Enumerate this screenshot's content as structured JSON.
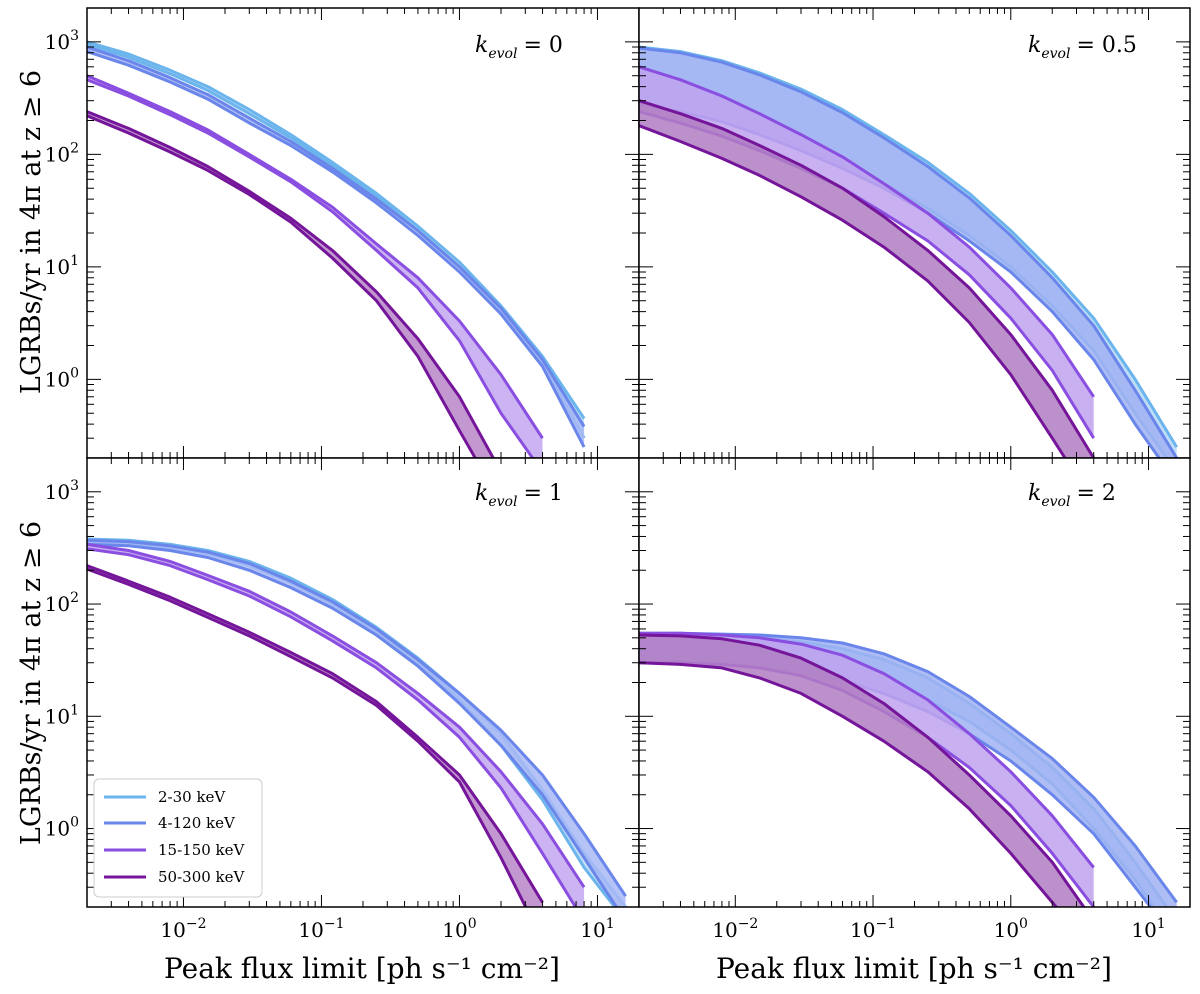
{
  "figure": {
    "ylabel": "LGRBs/yr in 4π at z ≥ 6",
    "xlabel": "Peak flux limit [ph s⁻¹ cm⁻²]"
  },
  "ticks": {
    "x": [
      {
        "base": "10",
        "exp": "−2",
        "value": 0.01
      },
      {
        "base": "10",
        "exp": "−1",
        "value": 0.1
      },
      {
        "base": "10",
        "exp": "0",
        "value": 1
      },
      {
        "base": "10",
        "exp": "1",
        "value": 10
      }
    ],
    "y": [
      {
        "base": "10",
        "exp": "3",
        "value": 1000
      },
      {
        "base": "10",
        "exp": "2",
        "value": 100
      },
      {
        "base": "10",
        "exp": "1",
        "value": 10
      },
      {
        "base": "10",
        "exp": "0",
        "value": 1
      }
    ]
  },
  "legend": {
    "position": "lower-left",
    "items": [
      {
        "label": "2-30 keV",
        "color": "#6cb4ec"
      },
      {
        "label": "4-120 keV",
        "color": "#6a86ea"
      },
      {
        "label": "15-150 keV",
        "color": "#8a4ee0"
      },
      {
        "label": "50-300 keV",
        "color": "#74159a"
      }
    ]
  },
  "chart_data": [
    {
      "type": "area",
      "title": "k_evol = 0",
      "label_main": "k",
      "label_sub": "evol",
      "label_value": "= 0",
      "xscale": "log",
      "yscale": "log",
      "xlim": [
        0.002,
        20
      ],
      "ylim": [
        0.2,
        2000
      ],
      "x": [
        0.002,
        0.004,
        0.008,
        0.015,
        0.03,
        0.06,
        0.12,
        0.25,
        0.5,
        1,
        2,
        4,
        8,
        16
      ],
      "series": [
        {
          "name": "2-30 keV",
          "color": "#6cb4ec",
          "fill": "#b4d8f6",
          "upper": [
            1000,
            780,
            560,
            400,
            250,
            150,
            85,
            45,
            23,
            11,
            4.5,
            1.6,
            0.45,
            null
          ],
          "lower": [
            950,
            730,
            520,
            370,
            230,
            140,
            80,
            42,
            21,
            10,
            4.0,
            1.4,
            0.3,
            null
          ]
        },
        {
          "name": "4-120 keV",
          "color": "#6a86ea",
          "fill": "#a9b9f4",
          "upper": [
            900,
            680,
            480,
            340,
            210,
            130,
            75,
            40,
            21,
            10,
            4.3,
            1.5,
            0.38,
            null
          ],
          "lower": [
            820,
            620,
            440,
            310,
            190,
            120,
            70,
            37,
            19,
            9,
            3.8,
            1.3,
            0.25,
            null
          ]
        },
        {
          "name": "15-150 keV",
          "color": "#8a4ee0",
          "fill": "#c3a6f0",
          "upper": [
            500,
            350,
            240,
            165,
            100,
            60,
            34,
            16,
            8,
            3.3,
            1.1,
            0.3,
            null,
            null
          ],
          "lower": [
            460,
            330,
            225,
            155,
            95,
            57,
            31,
            14,
            6.5,
            2.2,
            0.5,
            0.15,
            null,
            null
          ]
        },
        {
          "name": "50-300 keV",
          "color": "#74159a",
          "fill": "#b886c8",
          "upper": [
            240,
            170,
            115,
            78,
            47,
            27,
            14,
            6.0,
            2.3,
            0.7,
            0.15,
            null,
            null,
            null
          ],
          "lower": [
            220,
            155,
            105,
            72,
            44,
            25,
            12,
            5.0,
            1.6,
            0.35,
            0.08,
            null,
            null,
            null
          ]
        }
      ]
    },
    {
      "type": "area",
      "title": "k_evol = 0.5",
      "label_main": "k",
      "label_sub": "evol",
      "label_value": "= 0.5",
      "xscale": "log",
      "yscale": "log",
      "xlim": [
        0.002,
        20
      ],
      "ylim": [
        0.2,
        2000
      ],
      "x": [
        0.002,
        0.004,
        0.008,
        0.015,
        0.03,
        0.06,
        0.12,
        0.25,
        0.5,
        1,
        2,
        4,
        8,
        16
      ],
      "series": [
        {
          "name": "2-30 keV",
          "color": "#6cb4ec",
          "fill": "#b4d8f6",
          "upper": [
            900,
            820,
            680,
            530,
            380,
            250,
            150,
            85,
            45,
            21,
            9,
            3.5,
            1.0,
            0.25
          ],
          "lower": [
            340,
            280,
            220,
            170,
            120,
            82,
            55,
            33,
            19,
            10,
            4.5,
            1.8,
            0.5,
            0.15
          ]
        },
        {
          "name": "4-120 keV",
          "color": "#6a86ea",
          "fill": "#a0b2f2",
          "upper": [
            880,
            800,
            660,
            510,
            360,
            235,
            140,
            78,
            41,
            19,
            8,
            3.0,
            0.8,
            0.2
          ],
          "lower": [
            280,
            240,
            195,
            150,
            108,
            75,
            50,
            30,
            17,
            9,
            4,
            1.5,
            0.4,
            0.12
          ]
        },
        {
          "name": "15-150 keV",
          "color": "#8a4ee0",
          "fill": "#c0a2ee",
          "upper": [
            600,
            460,
            330,
            230,
            150,
            95,
            55,
            30,
            15,
            6.5,
            2.5,
            0.7,
            0.15,
            null
          ],
          "lower": [
            240,
            190,
            145,
            108,
            75,
            50,
            30,
            17,
            8.5,
            3.5,
            1.2,
            0.3,
            null,
            null
          ]
        },
        {
          "name": "50-300 keV",
          "color": "#74159a",
          "fill": "#b07ec2",
          "upper": [
            300,
            230,
            170,
            120,
            80,
            50,
            28,
            14,
            6.5,
            2.5,
            0.8,
            0.2,
            null,
            null
          ],
          "lower": [
            180,
            130,
            92,
            65,
            42,
            26,
            15,
            7.5,
            3.2,
            1.1,
            0.3,
            0.08,
            null,
            null
          ]
        }
      ]
    },
    {
      "type": "area",
      "title": "k_evol = 1",
      "label_main": "k",
      "label_sub": "evol",
      "label_value": "= 1",
      "xscale": "log",
      "yscale": "log",
      "xlim": [
        0.002,
        20
      ],
      "ylim": [
        0.2,
        2000
      ],
      "x": [
        0.002,
        0.004,
        0.008,
        0.015,
        0.03,
        0.06,
        0.12,
        0.25,
        0.5,
        1,
        2,
        4,
        8,
        16
      ],
      "series": [
        {
          "name": "2-30 keV",
          "color": "#6cb4ec",
          "fill": "#b4d8f6",
          "upper": [
            380,
            370,
            340,
            300,
            240,
            170,
            110,
            62,
            33,
            16,
            7,
            2.2,
            0.6,
            0.2
          ],
          "lower": [
            360,
            350,
            320,
            280,
            220,
            155,
            100,
            56,
            30,
            14,
            5.5,
            1.8,
            0.45,
            0.15
          ]
        },
        {
          "name": "4-120 keV",
          "color": "#6a86ea",
          "fill": "#a9b9f4",
          "upper": [
            370,
            360,
            330,
            290,
            230,
            160,
            105,
            60,
            32,
            16,
            7.5,
            3.0,
            0.9,
            0.25
          ],
          "lower": [
            340,
            330,
            300,
            260,
            200,
            140,
            92,
            53,
            28,
            13,
            5.5,
            2.0,
            0.55,
            0.15
          ]
        },
        {
          "name": "15-150 keV",
          "color": "#8a4ee0",
          "fill": "#c3a6f0",
          "upper": [
            340,
            300,
            240,
            180,
            130,
            85,
            52,
            30,
            16,
            8,
            3.2,
            1.1,
            0.3,
            null
          ],
          "lower": [
            310,
            275,
            220,
            165,
            118,
            77,
            47,
            27,
            14,
            6.5,
            2.3,
            0.6,
            0.15,
            null
          ]
        },
        {
          "name": "50-300 keV",
          "color": "#74159a",
          "fill": "#b886c8",
          "upper": [
            220,
            160,
            115,
            82,
            56,
            37,
            24,
            13.5,
            6.5,
            3.0,
            0.9,
            0.22,
            null,
            null
          ],
          "lower": [
            205,
            150,
            107,
            76,
            52,
            34,
            22,
            12.5,
            6.0,
            2.6,
            0.55,
            0.1,
            null,
            null
          ]
        }
      ]
    },
    {
      "type": "area",
      "title": "k_evol = 2",
      "label_main": "k",
      "label_sub": "evol",
      "label_value": "= 2",
      "xscale": "log",
      "yscale": "log",
      "xlim": [
        0.002,
        20
      ],
      "ylim": [
        0.2,
        2000
      ],
      "x": [
        0.002,
        0.004,
        0.008,
        0.015,
        0.03,
        0.06,
        0.12,
        0.25,
        0.5,
        1,
        2,
        4,
        8,
        16
      ],
      "series": [
        {
          "name": "2-30 keV",
          "color": "#6cb4ec",
          "fill": "#b4d8f6",
          "upper": [
            54,
            54,
            52,
            50,
            46,
            40,
            32,
            22,
            13,
            7,
            3.5,
            1.5,
            0.5,
            0.15
          ],
          "lower": [
            30,
            30,
            29,
            28,
            26,
            23,
            19,
            14,
            9,
            5,
            2.5,
            1.0,
            0.35,
            0.1
          ]
        },
        {
          "name": "4-120 keV",
          "color": "#6a86ea",
          "fill": "#a0b2f2",
          "upper": [
            55,
            55,
            54,
            53,
            50,
            45,
            36,
            25,
            15,
            8,
            4.2,
            1.9,
            0.7,
            0.22
          ],
          "lower": [
            30,
            30,
            29,
            28,
            25,
            21,
            16,
            11,
            7,
            4,
            2.0,
            0.9,
            0.3,
            0.1
          ]
        },
        {
          "name": "15-150 keV",
          "color": "#8a4ee0",
          "fill": "#c0a2ee",
          "upper": [
            55,
            55,
            53,
            50,
            44,
            35,
            24,
            14,
            7,
            3.2,
            1.3,
            0.45,
            0.12,
            null
          ],
          "lower": [
            30,
            30,
            29,
            27,
            23,
            17,
            11,
            6.5,
            3.5,
            1.6,
            0.6,
            0.2,
            null,
            null
          ]
        },
        {
          "name": "50-300 keV",
          "color": "#74159a",
          "fill": "#b07ec2",
          "upper": [
            53,
            52,
            49,
            43,
            33,
            22,
            13,
            6.5,
            3.0,
            1.3,
            0.5,
            0.15,
            null,
            null
          ],
          "lower": [
            30,
            29,
            27,
            22,
            16,
            10,
            6,
            3.2,
            1.5,
            0.6,
            0.22,
            0.08,
            null,
            null
          ]
        }
      ]
    }
  ]
}
